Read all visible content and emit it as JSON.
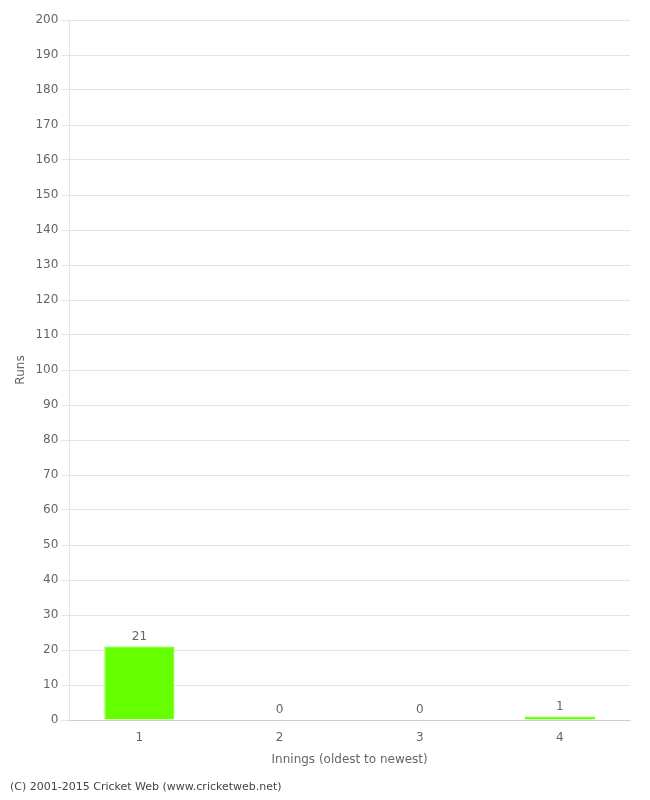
{
  "chart_data": {
    "type": "bar",
    "categories": [
      "1",
      "2",
      "3",
      "4"
    ],
    "values": [
      21,
      0,
      0,
      1
    ],
    "color": "#66ff00",
    "xlabel": "Innings (oldest to newest)",
    "ylabel": "Runs",
    "ylim": [
      0,
      200
    ],
    "yticks": [
      0,
      10,
      20,
      30,
      40,
      50,
      60,
      70,
      80,
      90,
      100,
      110,
      120,
      130,
      140,
      150,
      160,
      170,
      180,
      190,
      200
    ],
    "grid": true,
    "data_labels": true,
    "footer": "(C) 2001-2015 Cricket Web (www.cricketweb.net)"
  }
}
